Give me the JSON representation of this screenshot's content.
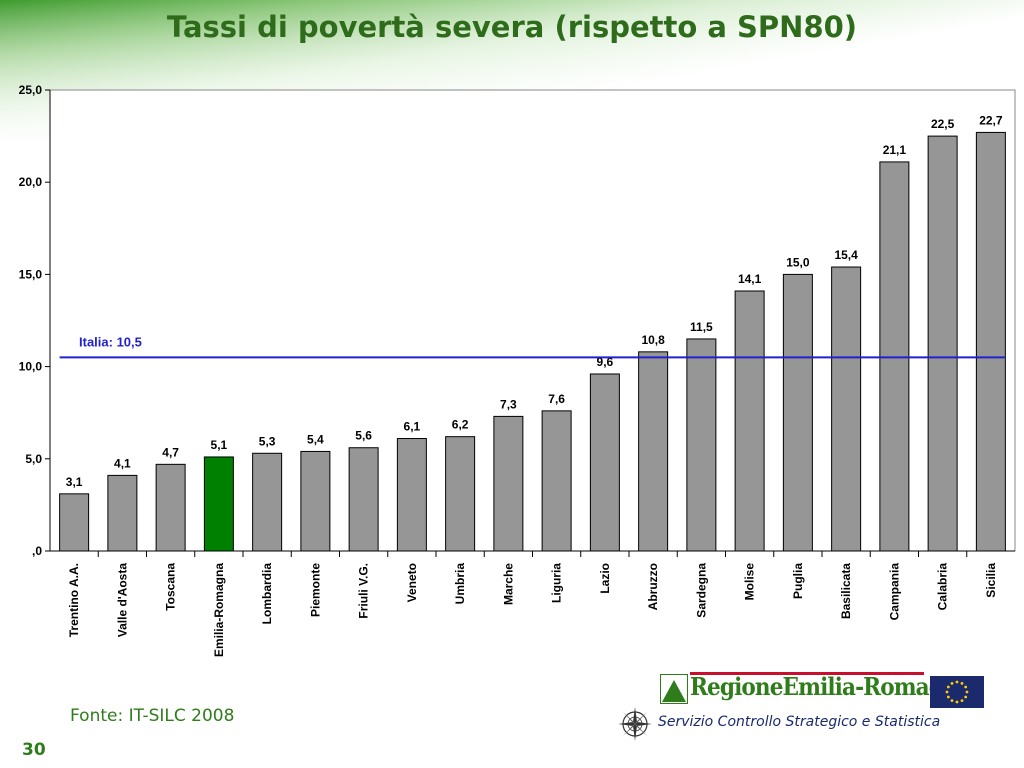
{
  "title": "Tassi di povertà severa (rispetto a SPN80)",
  "source": "Fonte: IT-SILC 2008",
  "page_number": "30",
  "logo": {
    "text": "RegioneEmilia-Romagna",
    "service": "Servizio Controllo Strategico e Statistica",
    "icons": [
      "compass-icon",
      "eu-flag-icon"
    ]
  },
  "colors": {
    "bar": "#969696",
    "highlight": "#008000",
    "reference_line": "#2222cc",
    "title": "#2e6b1a"
  },
  "chart_data": {
    "type": "bar",
    "categories": [
      "Trentino A.A.",
      "Valle d'Aosta",
      "Toscana",
      "Emilia-Romagna",
      "Lombardia",
      "Piemonte",
      "Friuli V.G.",
      "Veneto",
      "Umbria",
      "Marche",
      "Liguria",
      "Lazio",
      "Abruzzo",
      "Sardegna",
      "Molise",
      "Puglia",
      "Basilicata",
      "Campania",
      "Calabria",
      "Sicilia"
    ],
    "values": [
      3.1,
      4.1,
      4.7,
      5.1,
      5.3,
      5.4,
      5.6,
      6.1,
      6.2,
      7.3,
      7.6,
      9.6,
      10.8,
      11.5,
      14.1,
      15.0,
      15.4,
      21.1,
      22.5,
      22.7
    ],
    "value_labels": [
      "3,1",
      "4,1",
      "4,7",
      "5,1",
      "5,3",
      "5,4",
      "5,6",
      "6,1",
      "6,2",
      "7,3",
      "7,6",
      "9,6",
      "10,8",
      "11,5",
      "14,1",
      "15,0",
      "15,4",
      "21,1",
      "22,5",
      "22,7"
    ],
    "highlight_category": "Emilia-Romagna",
    "reference_line": {
      "label": "Italia: 10,5",
      "value": 10.5
    },
    "ylim": [
      0,
      25
    ],
    "yticks": [
      0,
      5,
      10,
      15,
      20,
      25
    ],
    "ytick_labels": [
      ",0",
      "5,0",
      "10,0",
      "15,0",
      "20,0",
      "25,0"
    ],
    "xlabel": "",
    "ylabel": "",
    "grid": false,
    "legend": "none"
  }
}
